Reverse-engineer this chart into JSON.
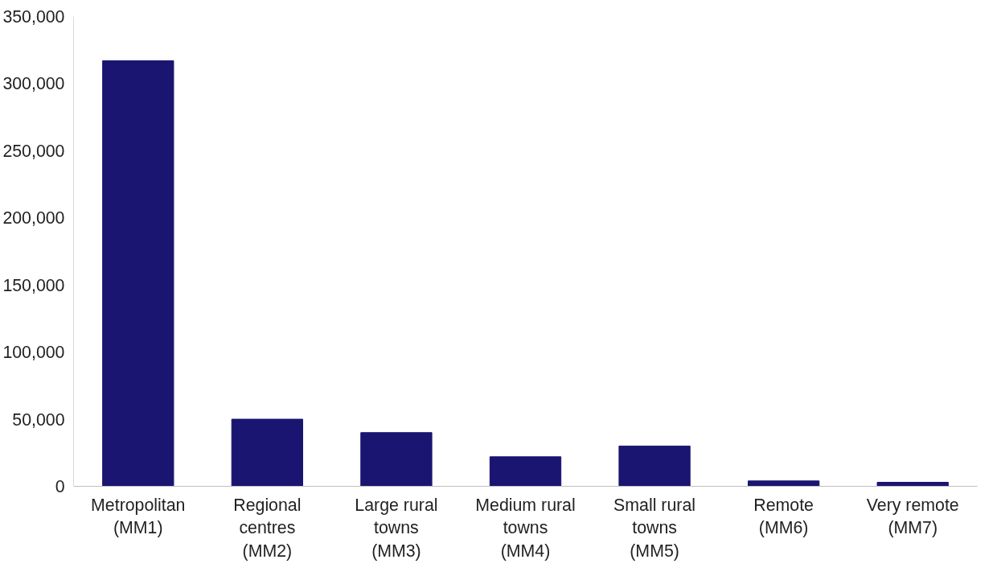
{
  "chart_data": {
    "type": "bar",
    "categories": [
      "Metropolitan\n(MM1)",
      "Regional\ncentres\n(MM2)",
      "Large rural\ntowns\n(MM3)",
      "Medium rural\ntowns\n(MM4)",
      "Small rural\ntowns\n(MM5)",
      "Remote\n(MM6)",
      "Very remote\n(MM7)"
    ],
    "values": [
      317000,
      50000,
      40000,
      22000,
      30000,
      4000,
      3000
    ],
    "color": "#1a1570",
    "ylim": [
      0,
      350000
    ],
    "yticks": [
      {
        "value": 0,
        "label": "0"
      },
      {
        "value": 50000,
        "label": "50,000"
      },
      {
        "value": 100000,
        "label": "100,000"
      },
      {
        "value": 150000,
        "label": "150,000"
      },
      {
        "value": 200000,
        "label": "200,000"
      },
      {
        "value": 250000,
        "label": "250,000"
      },
      {
        "value": 300000,
        "label": "300,000"
      },
      {
        "value": 350000,
        "label": "350,000"
      }
    ],
    "grid": false
  }
}
